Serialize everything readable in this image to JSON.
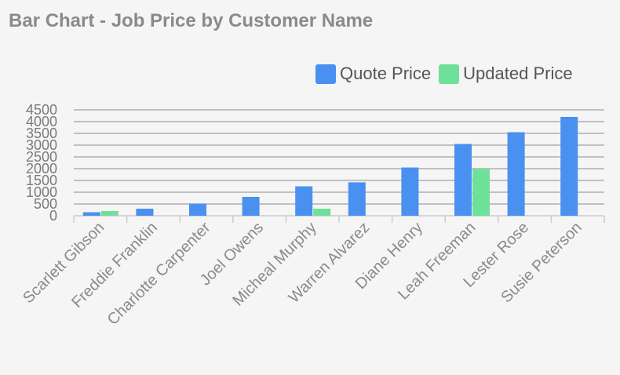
{
  "colors": {
    "quote": "#4a90f0",
    "updated": "#6ee09a",
    "title": "#8a8a8a",
    "grid": "#8c8c8c",
    "tick": "#7a7a7a"
  },
  "chart_data": {
    "type": "bar",
    "title": "Bar Chart - Job Price by Customer Name",
    "xlabel": "",
    "ylabel": "",
    "ylim": [
      0,
      4500
    ],
    "yticks": [
      "0",
      "500",
      "1000",
      "1500",
      "2000",
      "2500",
      "3000",
      "3500",
      "4000",
      "4500"
    ],
    "grid": true,
    "legend_position": "top-right",
    "categories": [
      "Scarlett Gibson",
      "Freddie Franklin",
      "Charlotte Carpenter",
      "Joel Owens",
      "Micheal Murphy",
      "Warren Alvarez",
      "Diane Henry",
      "Leah Freeman",
      "Lester Rose",
      "Susie Peterson"
    ],
    "series": [
      {
        "name": "Quote Price",
        "values": [
          150,
          300,
          520,
          800,
          1250,
          1420,
          2050,
          3050,
          3550,
          4200
        ]
      },
      {
        "name": "Updated Price",
        "values": [
          200,
          0,
          0,
          0,
          300,
          0,
          0,
          2000,
          0,
          0
        ]
      }
    ]
  }
}
